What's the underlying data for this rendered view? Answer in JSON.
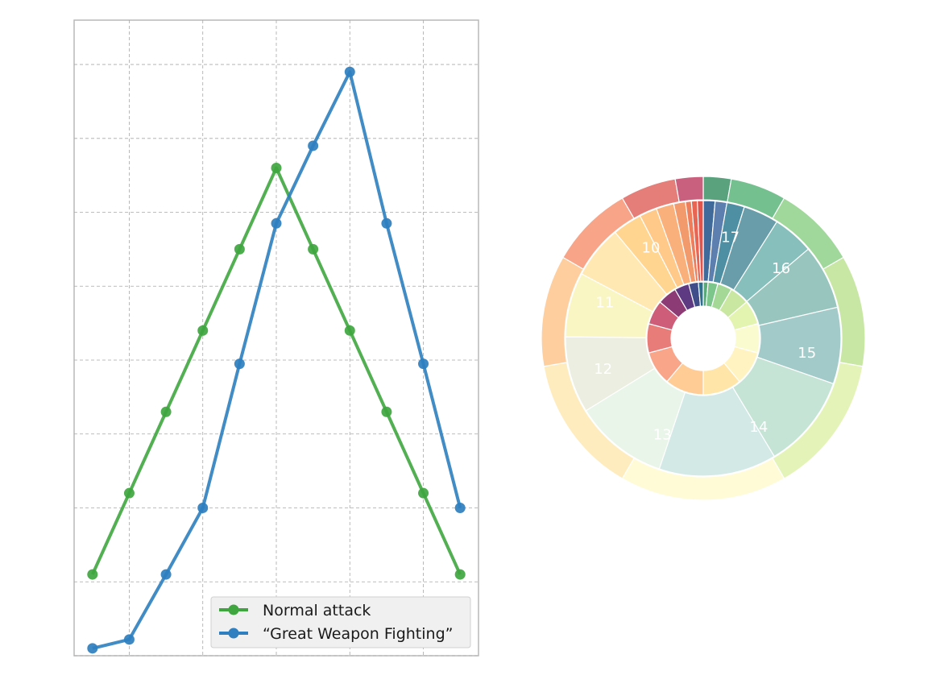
{
  "chart_data": [
    {
      "type": "line",
      "title": "",
      "xlabel": "",
      "ylabel": "",
      "x": [
        1,
        2,
        3,
        4,
        5,
        6,
        7,
        8,
        9,
        10,
        11
      ],
      "xlim": [
        0.5,
        11.5
      ],
      "ylim": [
        0,
        8.6
      ],
      "grid": true,
      "legend_position": "lower-right",
      "series": [
        {
          "name": "Normal attack",
          "color": "#3fa63f",
          "values": [
            1.1,
            2.2,
            3.3,
            4.4,
            5.5,
            6.6,
            5.5,
            4.4,
            3.3,
            2.2,
            1.1
          ]
        },
        {
          "name": "“Great Weapon Fighting”",
          "color": "#2e7fbf",
          "values": [
            0.1,
            0.22,
            1.1,
            2.0,
            3.95,
            5.85,
            6.9,
            7.9,
            5.85,
            3.95,
            2.0
          ]
        }
      ]
    },
    {
      "type": "pie",
      "title": "",
      "legend_position": "none",
      "inner_ring": {
        "labels": [
          "",
          "",
          "",
          "",
          "",
          "",
          "",
          "",
          "",
          "",
          "",
          "",
          "",
          "",
          "",
          ""
        ],
        "values": [
          1,
          2,
          3,
          4,
          5,
          6,
          7,
          8,
          8,
          7,
          6,
          5,
          4,
          3,
          2,
          1
        ],
        "colors": [
          "#5aa978",
          "#7cc58b",
          "#a3d896",
          "#c9e7a0",
          "#e3f3b0",
          "#fbfbd0",
          "#fff4c1",
          "#ffe5a8",
          "#ffcc96",
          "#f9a58a",
          "#e87c78",
          "#cd5d78",
          "#8d3b75",
          "#5e3a83",
          "#3f4d8a",
          "#2c6f8f"
        ]
      },
      "middle_ring": {
        "values": [
          2,
          2,
          3,
          6,
          7,
          11,
          13,
          16,
          20,
          16,
          13,
          11,
          9,
          5,
          3,
          3,
          2,
          1,
          1,
          1
        ],
        "colors": [
          "#3f6a9a",
          "#5d7faf",
          "#4f8fa3",
          "#6a9daa",
          "#86bfbc",
          "#98c6bf",
          "#a2cac8",
          "#c5e4d6",
          "#d2e9e6",
          "#eaf5ea",
          "#ebeee0",
          "#faf6c4",
          "#ffe8b2",
          "#ffd590",
          "#ffc989",
          "#f9b07a",
          "#f39a6d",
          "#ee7d5c",
          "#e76552",
          "#e4524c"
        ],
        "labels": [
          "17",
          "16",
          "15",
          "14",
          "13",
          "12",
          "11",
          "10"
        ],
        "label_colors": "#ffffff"
      },
      "outer_ring": {
        "values": [
          1,
          2,
          3,
          4,
          5,
          6,
          5,
          4,
          3,
          2,
          1
        ],
        "colors": [
          "#5aa27e",
          "#74c08f",
          "#a0d79a",
          "#c8e7a5",
          "#e4f4b9",
          "#fffbd6",
          "#ffecbe",
          "#ffce9e",
          "#f8a488",
          "#e57d78",
          "#c9607e"
        ]
      }
    }
  ]
}
